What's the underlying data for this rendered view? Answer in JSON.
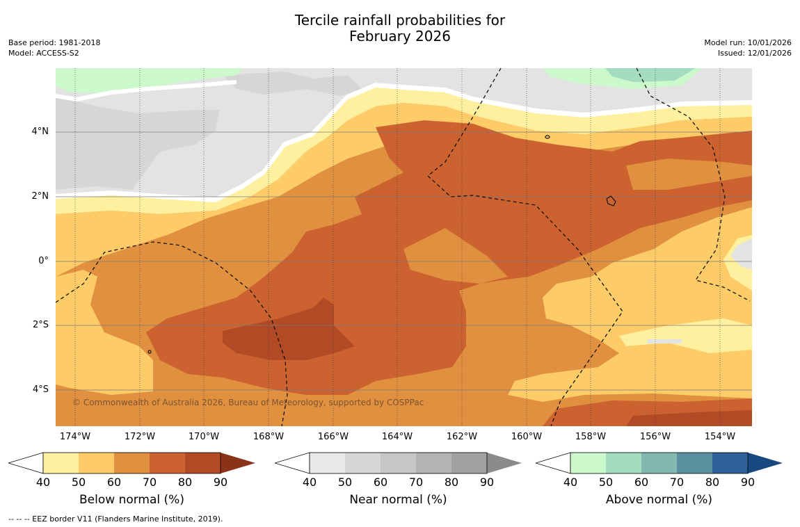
{
  "title": {
    "line1": "Tercile rainfall probabilities for",
    "line2": "February 2026"
  },
  "meta_left": {
    "base_period": "Base period: 1981-2018",
    "model": "Model: ACCESS-S2"
  },
  "meta_right": {
    "model_run": "Model run: 10/01/2026",
    "issued": "Issued: 12/01/2026"
  },
  "axes": {
    "y_labels": [
      "4°N",
      "2°N",
      "0°",
      "2°S",
      "4°S"
    ],
    "x_labels": [
      "174°W",
      "172°W",
      "170°W",
      "168°W",
      "166°W",
      "164°W",
      "162°W",
      "160°W",
      "158°W",
      "156°W",
      "154°W"
    ]
  },
  "copyright": "© Commonwealth of Australia 2026, Bureau of Meteorology, supported by COSPPac",
  "colorbars": [
    {
      "title": "Below normal (%)",
      "ticks": [
        "40",
        "50",
        "60",
        "70",
        "80",
        "90"
      ],
      "colors": [
        "#fff0a0",
        "#fdcb68",
        "#e0903e",
        "#cc6230",
        "#b24a25",
        "#8a3318"
      ]
    },
    {
      "title": "Near normal (%)",
      "ticks": [
        "40",
        "50",
        "60",
        "70",
        "80",
        "90"
      ],
      "colors": [
        "#e8e8e8",
        "#d6d6d6",
        "#c6c6c6",
        "#b3b3b3",
        "#a2a2a2",
        "#8a8a8a"
      ]
    },
    {
      "title": "Above normal (%)",
      "ticks": [
        "40",
        "50",
        "60",
        "70",
        "80",
        "90"
      ],
      "colors": [
        "#ccf9cc",
        "#a4dcc0",
        "#83b8b0",
        "#5a90a0",
        "#30609a",
        "#184880"
      ]
    }
  ],
  "footer": "--  --  -- EEZ border V11 (Flanders Marine Institute, 2019)."
}
